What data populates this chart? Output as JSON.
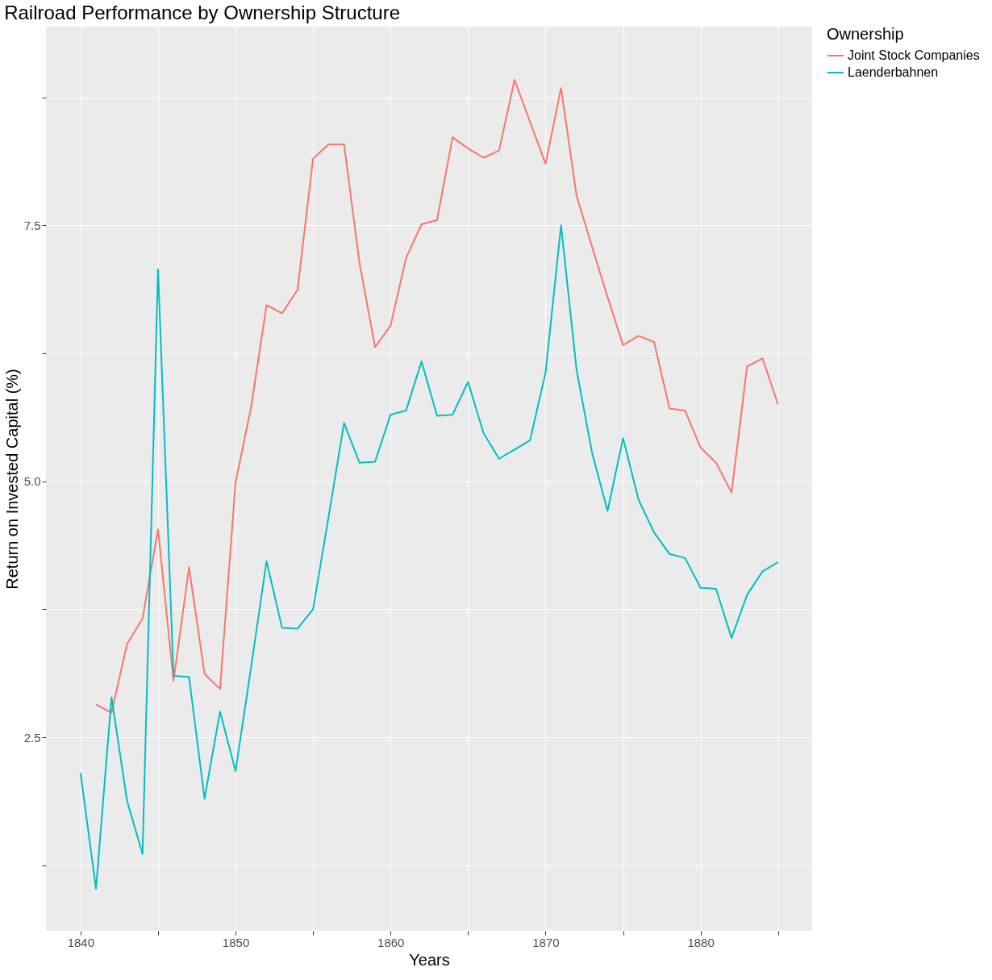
{
  "chart_data": {
    "type": "line",
    "title": "Railroad Performance by Ownership Structure",
    "xlabel": "Years",
    "ylabel": "Return on Invested Capital (%)",
    "legend_title": "Ownership",
    "legend": "right",
    "grid": true,
    "line_style": "solid",
    "marker": "none",
    "xlim": [
      1837.77,
      1887.2
    ],
    "ylim": [
      0.61,
      9.44
    ],
    "xticks": [
      1840,
      {
        "value": 1845,
        "label": null
      },
      1850,
      {
        "value": 1855,
        "label": null
      },
      1860,
      {
        "value": 1865,
        "label": null
      },
      1870,
      {
        "value": 1875,
        "label": null
      },
      1880,
      {
        "value": 1885,
        "label": null
      }
    ],
    "yticks": [
      {
        "value": 1.25,
        "label": null
      },
      2.5,
      {
        "value": 3.75,
        "label": null
      },
      {
        "value": 5,
        "label": "5.0"
      },
      {
        "value": 6.25,
        "label": null
      },
      7.5,
      {
        "value": 8.75,
        "label": null
      }
    ],
    "series": [
      {
        "name": "Joint Stock Companies",
        "color": "#f8766d",
        "x": [
          1841,
          1842,
          1843,
          1844,
          1845,
          1846,
          1847,
          1848,
          1849,
          1850,
          1851,
          1852,
          1853,
          1854,
          1855,
          1856,
          1857,
          1858,
          1859,
          1860,
          1861,
          1862,
          1863,
          1864,
          1865,
          1866,
          1867,
          1868,
          1869,
          1870,
          1871,
          1872,
          1873,
          1874,
          1875,
          1876,
          1877,
          1878,
          1879,
          1880,
          1881,
          1882,
          1883,
          1884,
          1885
        ],
        "values": [
          2.82,
          2.74,
          3.41,
          3.66,
          4.53,
          3.05,
          4.16,
          3.12,
          2.97,
          4.99,
          5.72,
          6.72,
          6.64,
          6.87,
          8.15,
          8.29,
          8.29,
          7.13,
          6.31,
          6.52,
          7.18,
          7.51,
          7.55,
          8.36,
          8.25,
          8.16,
          8.23,
          8.92,
          8.51,
          8.1,
          8.84,
          7.79,
          7.29,
          6.8,
          6.33,
          6.42,
          6.36,
          5.71,
          5.69,
          5.33,
          5.18,
          4.89,
          6.12,
          6.2,
          5.75
        ]
      },
      {
        "name": "Laenderbahnen",
        "color": "#00bfc4",
        "x": [
          1840,
          1841,
          1842,
          1843,
          1844,
          1845,
          1846,
          1847,
          1848,
          1849,
          1850,
          1851,
          1852,
          1853,
          1854,
          1855,
          1856,
          1857,
          1858,
          1859,
          1860,
          1861,
          1862,
          1863,
          1864,
          1865,
          1866,
          1867,
          1868,
          1869,
          1870,
          1871,
          1872,
          1873,
          1874,
          1875,
          1876,
          1877,
          1878,
          1879,
          1880,
          1881,
          1882,
          1883,
          1884,
          1885
        ],
        "values": [
          2.15,
          1.02,
          2.89,
          1.88,
          1.36,
          7.07,
          3.1,
          3.09,
          1.9,
          2.75,
          2.17,
          3.18,
          4.22,
          3.57,
          3.56,
          3.75,
          4.65,
          5.57,
          5.18,
          5.19,
          5.65,
          5.69,
          6.17,
          5.64,
          5.65,
          5.97,
          5.47,
          5.22,
          5.31,
          5.4,
          6.06,
          7.5,
          6.09,
          5.28,
          4.71,
          5.42,
          4.82,
          4.5,
          4.29,
          4.25,
          3.96,
          3.95,
          3.47,
          3.89,
          4.12,
          4.21
        ]
      }
    ]
  }
}
